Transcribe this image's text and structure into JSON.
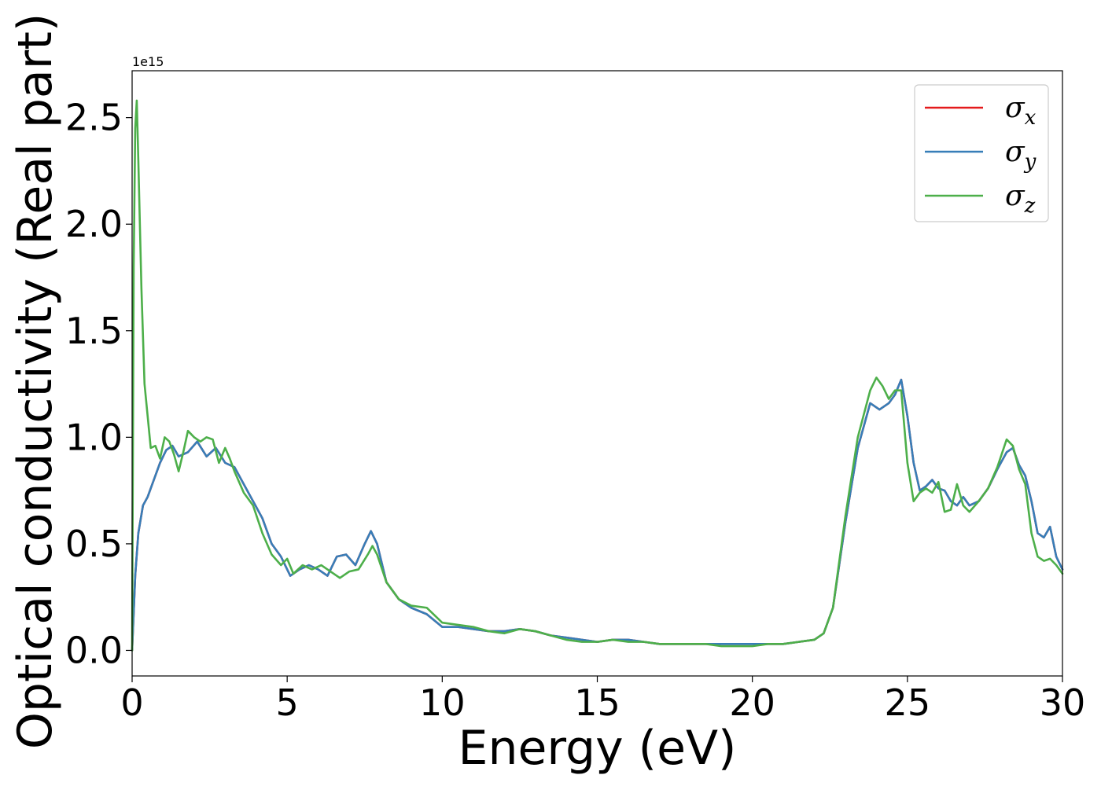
{
  "chart_data": {
    "type": "line",
    "title": "",
    "xlabel": "Energy (eV)",
    "ylabel": "Optical conductivity (Real part)",
    "y_offset_text": "1e15",
    "y_scale": 1000000000000000.0,
    "xlim": [
      0,
      30
    ],
    "ylim": [
      -0.12,
      2.72
    ],
    "xticks": [
      0,
      5,
      10,
      15,
      20,
      25,
      30
    ],
    "xtick_labels": [
      "0",
      "5",
      "10",
      "15",
      "20",
      "25",
      "30"
    ],
    "yticks": [
      0.0,
      0.5,
      1.0,
      1.5,
      2.0,
      2.5
    ],
    "ytick_labels": [
      "0.0",
      "0.5",
      "1.0",
      "1.5",
      "2.0",
      "2.5"
    ],
    "grid": false,
    "legend_position": "top-right",
    "series": [
      {
        "name": "σx",
        "legend_base": "σ",
        "legend_sub": "x",
        "color": "#e41a1c",
        "x": [
          0,
          0.1,
          0.2,
          0.35,
          0.5,
          0.7,
          0.9,
          1.1,
          1.3,
          1.5,
          1.8,
          2.1,
          2.4,
          2.7,
          3.0,
          3.3,
          3.6,
          3.9,
          4.2,
          4.5,
          4.8,
          5.1,
          5.4,
          5.7,
          6.0,
          6.3,
          6.6,
          6.9,
          7.2,
          7.5,
          7.7,
          7.9,
          8.2,
          8.6,
          9.0,
          9.5,
          10.0,
          10.5,
          11.0,
          11.5,
          12.0,
          12.5,
          13.0,
          13.5,
          14.0,
          14.5,
          15.0,
          15.5,
          16.0,
          16.5,
          17.0,
          17.5,
          18.0,
          18.5,
          19.0,
          19.5,
          20.0,
          20.5,
          21.0,
          21.5,
          22.0,
          22.3,
          22.6,
          23.0,
          23.4,
          23.8,
          24.1,
          24.4,
          24.6,
          24.8,
          25.0,
          25.2,
          25.4,
          25.6,
          25.8,
          26.0,
          26.2,
          26.4,
          26.6,
          26.8,
          27.0,
          27.3,
          27.6,
          27.9,
          28.2,
          28.4,
          28.6,
          28.8,
          29.0,
          29.2,
          29.4,
          29.6,
          29.8,
          30.0
        ],
        "values": [
          0.0,
          0.35,
          0.55,
          0.68,
          0.72,
          0.8,
          0.88,
          0.94,
          0.96,
          0.91,
          0.93,
          0.98,
          0.91,
          0.95,
          0.88,
          0.86,
          0.78,
          0.7,
          0.62,
          0.5,
          0.44,
          0.35,
          0.38,
          0.4,
          0.38,
          0.35,
          0.44,
          0.45,
          0.4,
          0.5,
          0.56,
          0.5,
          0.32,
          0.24,
          0.2,
          0.17,
          0.11,
          0.11,
          0.1,
          0.09,
          0.09,
          0.1,
          0.09,
          0.07,
          0.06,
          0.05,
          0.04,
          0.05,
          0.05,
          0.04,
          0.03,
          0.03,
          0.03,
          0.03,
          0.03,
          0.03,
          0.03,
          0.03,
          0.03,
          0.04,
          0.05,
          0.08,
          0.2,
          0.6,
          0.95,
          1.16,
          1.13,
          1.16,
          1.2,
          1.27,
          1.1,
          0.88,
          0.75,
          0.77,
          0.8,
          0.76,
          0.75,
          0.7,
          0.68,
          0.72,
          0.68,
          0.7,
          0.76,
          0.85,
          0.93,
          0.95,
          0.87,
          0.82,
          0.7,
          0.55,
          0.53,
          0.58,
          0.44,
          0.38
        ]
      },
      {
        "name": "σy",
        "legend_base": "σ",
        "legend_sub": "y",
        "color": "#377eb8",
        "x": [
          0,
          0.1,
          0.2,
          0.35,
          0.5,
          0.7,
          0.9,
          1.1,
          1.3,
          1.5,
          1.8,
          2.1,
          2.4,
          2.7,
          3.0,
          3.3,
          3.6,
          3.9,
          4.2,
          4.5,
          4.8,
          5.1,
          5.4,
          5.7,
          6.0,
          6.3,
          6.6,
          6.9,
          7.2,
          7.5,
          7.7,
          7.9,
          8.2,
          8.6,
          9.0,
          9.5,
          10.0,
          10.5,
          11.0,
          11.5,
          12.0,
          12.5,
          13.0,
          13.5,
          14.0,
          14.5,
          15.0,
          15.5,
          16.0,
          16.5,
          17.0,
          17.5,
          18.0,
          18.5,
          19.0,
          19.5,
          20.0,
          20.5,
          21.0,
          21.5,
          22.0,
          22.3,
          22.6,
          23.0,
          23.4,
          23.8,
          24.1,
          24.4,
          24.6,
          24.8,
          25.0,
          25.2,
          25.4,
          25.6,
          25.8,
          26.0,
          26.2,
          26.4,
          26.6,
          26.8,
          27.0,
          27.3,
          27.6,
          27.9,
          28.2,
          28.4,
          28.6,
          28.8,
          29.0,
          29.2,
          29.4,
          29.6,
          29.8,
          30.0
        ],
        "values": [
          0.0,
          0.35,
          0.55,
          0.68,
          0.72,
          0.8,
          0.88,
          0.94,
          0.96,
          0.91,
          0.93,
          0.98,
          0.91,
          0.95,
          0.88,
          0.86,
          0.78,
          0.7,
          0.62,
          0.5,
          0.44,
          0.35,
          0.38,
          0.4,
          0.38,
          0.35,
          0.44,
          0.45,
          0.4,
          0.5,
          0.56,
          0.5,
          0.32,
          0.24,
          0.2,
          0.17,
          0.11,
          0.11,
          0.1,
          0.09,
          0.09,
          0.1,
          0.09,
          0.07,
          0.06,
          0.05,
          0.04,
          0.05,
          0.05,
          0.04,
          0.03,
          0.03,
          0.03,
          0.03,
          0.03,
          0.03,
          0.03,
          0.03,
          0.03,
          0.04,
          0.05,
          0.08,
          0.2,
          0.6,
          0.95,
          1.16,
          1.13,
          1.16,
          1.2,
          1.27,
          1.1,
          0.88,
          0.75,
          0.77,
          0.8,
          0.76,
          0.75,
          0.7,
          0.68,
          0.72,
          0.68,
          0.7,
          0.76,
          0.85,
          0.93,
          0.95,
          0.87,
          0.82,
          0.7,
          0.55,
          0.53,
          0.58,
          0.44,
          0.38
        ]
      },
      {
        "name": "σz",
        "legend_base": "σ",
        "legend_sub": "z",
        "color": "#4daf4a",
        "x": [
          0,
          0.05,
          0.1,
          0.15,
          0.2,
          0.3,
          0.4,
          0.5,
          0.6,
          0.75,
          0.9,
          1.05,
          1.2,
          1.35,
          1.5,
          1.65,
          1.8,
          2.0,
          2.2,
          2.4,
          2.6,
          2.8,
          3.0,
          3.15,
          3.3,
          3.6,
          3.9,
          4.2,
          4.5,
          4.8,
          5.0,
          5.2,
          5.5,
          5.8,
          6.1,
          6.4,
          6.7,
          7.0,
          7.3,
          7.6,
          7.75,
          7.9,
          8.2,
          8.6,
          9.0,
          9.5,
          10.0,
          10.5,
          11.0,
          11.5,
          12.0,
          12.5,
          13.0,
          13.5,
          14.0,
          14.5,
          15.0,
          15.5,
          16.0,
          16.5,
          17.0,
          17.5,
          18.0,
          18.5,
          19.0,
          19.5,
          20.0,
          20.5,
          21.0,
          21.5,
          22.0,
          22.3,
          22.6,
          23.0,
          23.4,
          23.8,
          24.0,
          24.2,
          24.4,
          24.6,
          24.8,
          25.0,
          25.2,
          25.4,
          25.6,
          25.8,
          26.0,
          26.2,
          26.4,
          26.6,
          26.8,
          27.0,
          27.3,
          27.6,
          27.9,
          28.2,
          28.4,
          28.6,
          28.8,
          29.0,
          29.2,
          29.4,
          29.6,
          29.8,
          30.0
        ],
        "values": [
          0.0,
          1.8,
          2.45,
          2.58,
          2.3,
          1.7,
          1.25,
          1.1,
          0.95,
          0.96,
          0.9,
          1.0,
          0.98,
          0.92,
          0.84,
          0.93,
          1.03,
          1.0,
          0.98,
          1.0,
          0.99,
          0.88,
          0.95,
          0.9,
          0.84,
          0.74,
          0.68,
          0.55,
          0.45,
          0.4,
          0.43,
          0.36,
          0.4,
          0.38,
          0.4,
          0.37,
          0.34,
          0.37,
          0.38,
          0.45,
          0.49,
          0.45,
          0.32,
          0.24,
          0.21,
          0.2,
          0.13,
          0.12,
          0.11,
          0.09,
          0.08,
          0.1,
          0.09,
          0.07,
          0.05,
          0.04,
          0.04,
          0.05,
          0.04,
          0.04,
          0.03,
          0.03,
          0.03,
          0.03,
          0.02,
          0.02,
          0.02,
          0.03,
          0.03,
          0.04,
          0.05,
          0.08,
          0.2,
          0.63,
          1.0,
          1.22,
          1.28,
          1.24,
          1.18,
          1.22,
          1.22,
          0.88,
          0.7,
          0.74,
          0.76,
          0.74,
          0.79,
          0.65,
          0.66,
          0.78,
          0.68,
          0.65,
          0.7,
          0.76,
          0.86,
          0.99,
          0.96,
          0.85,
          0.78,
          0.55,
          0.44,
          0.42,
          0.43,
          0.4,
          0.36
        ]
      }
    ]
  }
}
